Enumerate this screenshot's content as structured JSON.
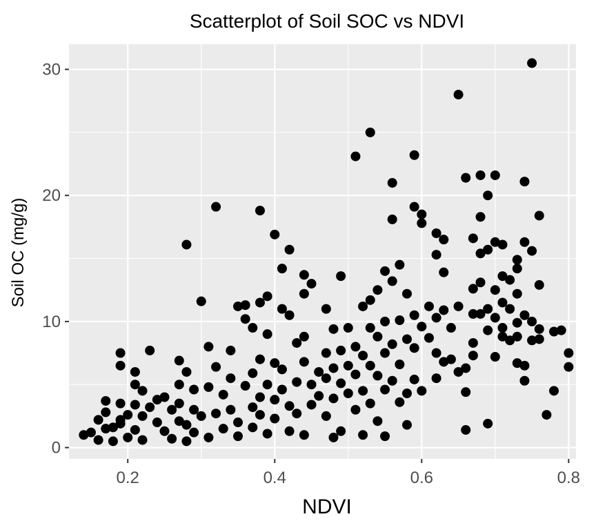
{
  "chart_data": {
    "type": "scatter",
    "title": "Scatterplot of Soil SOC vs NDVI",
    "xlabel": "NDVI",
    "ylabel": "Soil OC (mg/g)",
    "xlim": [
      0.12,
      0.81
    ],
    "ylim": [
      -0.9,
      32.0
    ],
    "x_ticks": [
      0.2,
      0.4,
      0.6,
      0.8
    ],
    "x_tick_labels": [
      "0.2",
      "0.4",
      "0.6",
      "0.8"
    ],
    "y_ticks": [
      0,
      10,
      20,
      30
    ],
    "y_tick_labels": [
      "0",
      "10",
      "20",
      "30"
    ],
    "grid": true,
    "legend": "none",
    "point_color": "#000000",
    "panel_color": "#ebebeb",
    "points": [
      [
        0.14,
        1.0
      ],
      [
        0.15,
        1.2
      ],
      [
        0.16,
        0.6
      ],
      [
        0.16,
        2.2
      ],
      [
        0.17,
        3.7
      ],
      [
        0.17,
        2.8
      ],
      [
        0.17,
        1.5
      ],
      [
        0.18,
        0.5
      ],
      [
        0.18,
        1.6
      ],
      [
        0.19,
        2.2
      ],
      [
        0.19,
        3.5
      ],
      [
        0.19,
        6.5
      ],
      [
        0.19,
        7.5
      ],
      [
        0.19,
        1.9
      ],
      [
        0.2,
        0.8
      ],
      [
        0.2,
        2.6
      ],
      [
        0.21,
        5.0
      ],
      [
        0.21,
        6.0
      ],
      [
        0.21,
        3.4
      ],
      [
        0.21,
        1.4
      ],
      [
        0.22,
        0.6
      ],
      [
        0.22,
        4.5
      ],
      [
        0.22,
        2.5
      ],
      [
        0.23,
        7.7
      ],
      [
        0.23,
        3.2
      ],
      [
        0.24,
        3.8
      ],
      [
        0.24,
        2.0
      ],
      [
        0.25,
        1.3
      ],
      [
        0.25,
        4.0
      ],
      [
        0.26,
        3.0
      ],
      [
        0.26,
        0.7
      ],
      [
        0.27,
        6.9
      ],
      [
        0.27,
        3.5
      ],
      [
        0.27,
        2.1
      ],
      [
        0.27,
        5.0
      ],
      [
        0.28,
        16.1
      ],
      [
        0.28,
        6.0
      ],
      [
        0.28,
        0.5
      ],
      [
        0.28,
        1.8
      ],
      [
        0.29,
        4.6
      ],
      [
        0.29,
        3.0
      ],
      [
        0.29,
        1.2
      ],
      [
        0.3,
        11.6
      ],
      [
        0.3,
        2.5
      ],
      [
        0.31,
        8.0
      ],
      [
        0.31,
        0.8
      ],
      [
        0.31,
        4.8
      ],
      [
        0.32,
        19.1
      ],
      [
        0.32,
        2.7
      ],
      [
        0.32,
        6.4
      ],
      [
        0.33,
        1.5
      ],
      [
        0.33,
        4.2
      ],
      [
        0.34,
        7.7
      ],
      [
        0.34,
        3.0
      ],
      [
        0.34,
        5.5
      ],
      [
        0.35,
        11.2
      ],
      [
        0.35,
        2.0
      ],
      [
        0.35,
        0.9
      ],
      [
        0.36,
        11.3
      ],
      [
        0.36,
        4.9
      ],
      [
        0.36,
        10.2
      ],
      [
        0.37,
        9.5
      ],
      [
        0.37,
        3.2
      ],
      [
        0.37,
        1.6
      ],
      [
        0.37,
        5.9
      ],
      [
        0.38,
        18.8
      ],
      [
        0.38,
        11.5
      ],
      [
        0.38,
        7.0
      ],
      [
        0.38,
        4.0
      ],
      [
        0.38,
        2.6
      ],
      [
        0.39,
        12.0
      ],
      [
        0.39,
        9.0
      ],
      [
        0.39,
        5.0
      ],
      [
        0.39,
        1.1
      ],
      [
        0.4,
        6.7
      ],
      [
        0.4,
        3.8
      ],
      [
        0.4,
        16.9
      ],
      [
        0.4,
        2.3
      ],
      [
        0.41,
        14.2
      ],
      [
        0.41,
        11.0
      ],
      [
        0.41,
        6.2
      ],
      [
        0.41,
        4.6
      ],
      [
        0.42,
        15.7
      ],
      [
        0.42,
        10.5
      ],
      [
        0.42,
        3.3
      ],
      [
        0.42,
        1.3
      ],
      [
        0.43,
        8.3
      ],
      [
        0.43,
        5.2
      ],
      [
        0.43,
        2.7
      ],
      [
        0.44,
        13.7
      ],
      [
        0.44,
        12.2
      ],
      [
        0.44,
        8.8
      ],
      [
        0.44,
        6.8
      ],
      [
        0.44,
        1.0
      ],
      [
        0.45,
        13.0
      ],
      [
        0.45,
        5.0
      ],
      [
        0.45,
        3.4
      ],
      [
        0.46,
        6.0
      ],
      [
        0.46,
        4.1
      ],
      [
        0.47,
        11.0
      ],
      [
        0.47,
        7.5
      ],
      [
        0.47,
        5.5
      ],
      [
        0.47,
        2.5
      ],
      [
        0.48,
        9.4
      ],
      [
        0.48,
        6.3
      ],
      [
        0.48,
        3.9
      ],
      [
        0.48,
        0.8
      ],
      [
        0.49,
        13.6
      ],
      [
        0.49,
        7.7
      ],
      [
        0.49,
        5.1
      ],
      [
        0.49,
        1.3
      ],
      [
        0.5,
        9.5
      ],
      [
        0.5,
        6.5
      ],
      [
        0.5,
        4.3
      ],
      [
        0.51,
        23.1
      ],
      [
        0.51,
        8.0
      ],
      [
        0.51,
        5.8
      ],
      [
        0.51,
        3.0
      ],
      [
        0.52,
        11.2
      ],
      [
        0.52,
        7.3
      ],
      [
        0.52,
        4.5
      ],
      [
        0.52,
        1.0
      ],
      [
        0.53,
        25.0
      ],
      [
        0.53,
        11.7
      ],
      [
        0.53,
        9.5
      ],
      [
        0.53,
        6.5
      ],
      [
        0.53,
        3.5
      ],
      [
        0.54,
        12.5
      ],
      [
        0.54,
        8.8
      ],
      [
        0.54,
        5.7
      ],
      [
        0.54,
        2.1
      ],
      [
        0.55,
        14.0
      ],
      [
        0.55,
        10.0
      ],
      [
        0.55,
        7.5
      ],
      [
        0.55,
        4.6
      ],
      [
        0.55,
        0.9
      ],
      [
        0.56,
        21.0
      ],
      [
        0.56,
        18.1
      ],
      [
        0.56,
        13.2
      ],
      [
        0.56,
        8.2
      ],
      [
        0.56,
        5.3
      ],
      [
        0.57,
        14.5
      ],
      [
        0.57,
        10.1
      ],
      [
        0.57,
        6.6
      ],
      [
        0.57,
        3.6
      ],
      [
        0.58,
        12.2
      ],
      [
        0.58,
        8.6
      ],
      [
        0.58,
        4.3
      ],
      [
        0.58,
        1.8
      ],
      [
        0.59,
        19.1
      ],
      [
        0.59,
        23.2
      ],
      [
        0.59,
        10.5
      ],
      [
        0.59,
        7.9
      ],
      [
        0.59,
        5.4
      ],
      [
        0.6,
        18.5
      ],
      [
        0.6,
        17.8
      ],
      [
        0.6,
        9.6
      ],
      [
        0.6,
        4.5
      ],
      [
        0.61,
        11.2
      ],
      [
        0.61,
        8.7
      ],
      [
        0.62,
        17.0
      ],
      [
        0.62,
        15.3
      ],
      [
        0.62,
        10.3
      ],
      [
        0.62,
        7.5
      ],
      [
        0.62,
        5.5
      ],
      [
        0.63,
        16.5
      ],
      [
        0.63,
        13.9
      ],
      [
        0.63,
        10.9
      ],
      [
        0.63,
        6.8
      ],
      [
        0.64,
        9.5
      ],
      [
        0.64,
        7.0
      ],
      [
        0.65,
        11.2
      ],
      [
        0.65,
        28.0
      ],
      [
        0.65,
        6.0
      ],
      [
        0.66,
        21.4
      ],
      [
        0.66,
        6.3
      ],
      [
        0.66,
        4.4
      ],
      [
        0.66,
        1.4
      ],
      [
        0.67,
        12.6
      ],
      [
        0.67,
        16.6
      ],
      [
        0.67,
        10.6
      ],
      [
        0.67,
        8.3
      ],
      [
        0.67,
        7.3
      ],
      [
        0.68,
        21.6
      ],
      [
        0.68,
        18.3
      ],
      [
        0.68,
        15.4
      ],
      [
        0.68,
        13.1
      ],
      [
        0.68,
        10.6
      ],
      [
        0.69,
        20.0
      ],
      [
        0.69,
        15.7
      ],
      [
        0.69,
        11.0
      ],
      [
        0.69,
        9.3
      ],
      [
        0.69,
        1.9
      ],
      [
        0.7,
        21.6
      ],
      [
        0.7,
        16.3
      ],
      [
        0.7,
        12.5
      ],
      [
        0.7,
        10.3
      ],
      [
        0.7,
        7.2
      ],
      [
        0.71,
        16.1
      ],
      [
        0.71,
        13.6
      ],
      [
        0.71,
        11.5
      ],
      [
        0.71,
        9.5
      ],
      [
        0.71,
        8.8
      ],
      [
        0.72,
        13.3
      ],
      [
        0.72,
        11.0
      ],
      [
        0.72,
        8.5
      ],
      [
        0.73,
        14.2
      ],
      [
        0.73,
        14.9
      ],
      [
        0.73,
        12.2
      ],
      [
        0.73,
        9.9
      ],
      [
        0.73,
        8.8
      ],
      [
        0.73,
        6.7
      ],
      [
        0.74,
        21.1
      ],
      [
        0.74,
        16.3
      ],
      [
        0.74,
        10.5
      ],
      [
        0.74,
        6.5
      ],
      [
        0.74,
        5.3
      ],
      [
        0.75,
        30.5
      ],
      [
        0.75,
        15.6
      ],
      [
        0.75,
        10.0
      ],
      [
        0.75,
        8.5
      ],
      [
        0.76,
        18.4
      ],
      [
        0.76,
        12.9
      ],
      [
        0.76,
        9.4
      ],
      [
        0.76,
        8.6
      ],
      [
        0.77,
        2.6
      ],
      [
        0.78,
        4.5
      ],
      [
        0.78,
        9.2
      ],
      [
        0.79,
        9.3
      ],
      [
        0.8,
        7.5
      ],
      [
        0.8,
        6.4
      ]
    ]
  }
}
